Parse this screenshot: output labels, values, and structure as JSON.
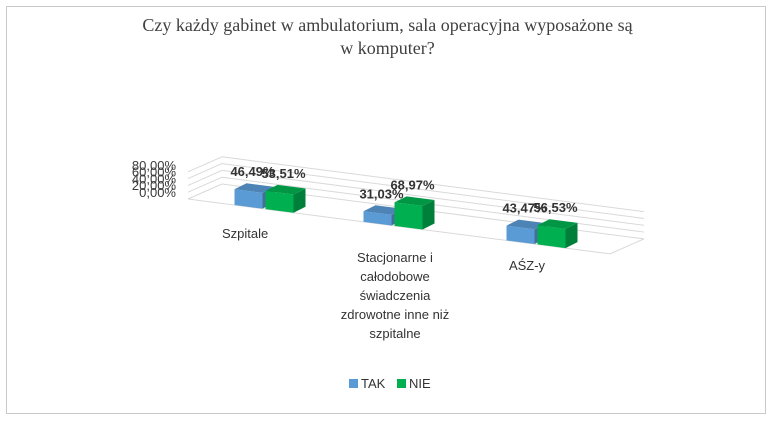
{
  "chart_data": {
    "type": "bar",
    "title_lines": [
      "Czy każdy gabinet w ambulatorium, sala operacyjna wyposażone są",
      "w komputer?"
    ],
    "categories": [
      [
        "Szpitale"
      ],
      [
        "Stacjonarne i",
        "całodobowe",
        "świadczenia",
        "zdrowotne inne niż",
        "szpitalne"
      ],
      [
        "AŚZ-y"
      ]
    ],
    "series": [
      {
        "name": "TAK",
        "color": "#5b9bd5",
        "values": [
          46.49,
          31.03,
          43.47
        ],
        "labels": [
          "46,49%",
          "31,03%",
          "43,47%"
        ]
      },
      {
        "name": "NIE",
        "color": "#00b050",
        "values": [
          53.51,
          68.97,
          56.53
        ],
        "labels": [
          "53,51%",
          "68,97%",
          "56,53%"
        ]
      }
    ],
    "yticks": [
      "0,00%",
      "20,00%",
      "40,00%",
      "60,00%",
      "80,00%"
    ],
    "ylim": [
      0,
      80
    ],
    "grid": true,
    "legend": "bottom"
  }
}
